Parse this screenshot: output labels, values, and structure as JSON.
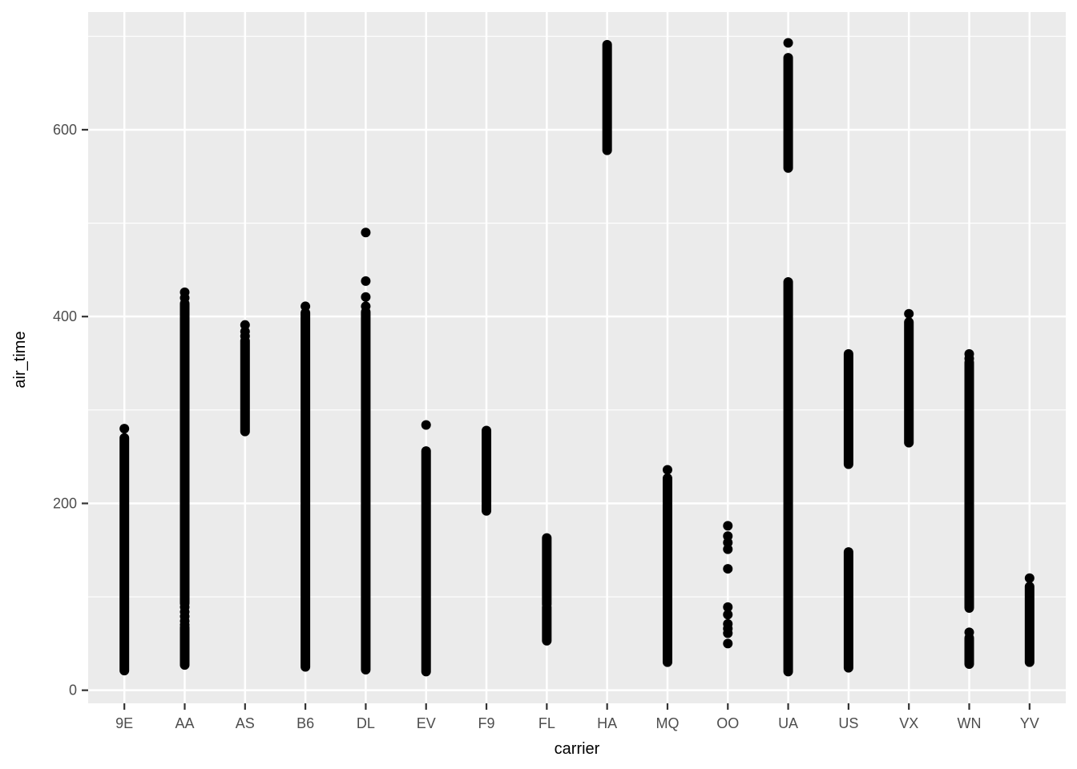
{
  "chart_data": {
    "type": "scatter",
    "title": "",
    "xlabel": "carrier",
    "ylabel": "air_time",
    "x_categories": [
      "9E",
      "AA",
      "AS",
      "B6",
      "DL",
      "EV",
      "F9",
      "FL",
      "HA",
      "MQ",
      "OO",
      "UA",
      "US",
      "VX",
      "WN",
      "YV"
    ],
    "y_axis": {
      "ticks": [
        0,
        200,
        400,
        600
      ],
      "tick_labels": [
        "0",
        "200",
        "400",
        "600"
      ],
      "minor_gridlines": [
        100,
        300,
        500,
        700
      ],
      "ylim": [
        -14,
        726
      ]
    },
    "grid": "on",
    "legend": null,
    "series": [
      {
        "carrier": "9E",
        "dense_ranges": [
          [
            21,
            270
          ]
        ],
        "isolated_points": [
          280
        ]
      },
      {
        "carrier": "AA",
        "dense_ranges": [
          [
            93,
            414
          ],
          [
            27,
            67
          ]
        ],
        "isolated_points": [
          426,
          420,
          89,
          84,
          79,
          74,
          70
        ]
      },
      {
        "carrier": "AS",
        "dense_ranges": [
          [
            277,
            374
          ]
        ],
        "isolated_points": [
          391,
          384,
          379
        ]
      },
      {
        "carrier": "B6",
        "dense_ranges": [
          [
            25,
            404
          ]
        ],
        "isolated_points": [
          411
        ]
      },
      {
        "carrier": "DL",
        "dense_ranges": [
          [
            22,
            405
          ]
        ],
        "isolated_points": [
          490,
          438,
          421,
          411
        ]
      },
      {
        "carrier": "EV",
        "dense_ranges": [
          [
            20,
            256
          ]
        ],
        "isolated_points": [
          284
        ]
      },
      {
        "carrier": "F9",
        "dense_ranges": [
          [
            192,
            278
          ]
        ],
        "isolated_points": []
      },
      {
        "carrier": "FL",
        "dense_ranges": [
          [
            92,
            163
          ],
          [
            53,
            89
          ]
        ],
        "isolated_points": []
      },
      {
        "carrier": "HA",
        "dense_ranges": [
          [
            578,
            691
          ]
        ],
        "isolated_points": []
      },
      {
        "carrier": "MQ",
        "dense_ranges": [
          [
            30,
            227
          ]
        ],
        "isolated_points": [
          236
        ]
      },
      {
        "carrier": "OO",
        "dense_ranges": [],
        "isolated_points": [
          176,
          165,
          158,
          151,
          130,
          89,
          81,
          71,
          66,
          61,
          50
        ]
      },
      {
        "carrier": "UA",
        "dense_ranges": [
          [
            559,
            677
          ],
          [
            20,
            437
          ]
        ],
        "isolated_points": [
          693
        ]
      },
      {
        "carrier": "US",
        "dense_ranges": [
          [
            242,
            360
          ],
          [
            24,
            148
          ]
        ],
        "isolated_points": []
      },
      {
        "carrier": "VX",
        "dense_ranges": [
          [
            265,
            394
          ]
        ],
        "isolated_points": [
          403
        ]
      },
      {
        "carrier": "WN",
        "dense_ranges": [
          [
            88,
            351
          ],
          [
            28,
            56
          ]
        ],
        "isolated_points": [
          360,
          355,
          62
        ]
      },
      {
        "carrier": "YV",
        "dense_ranges": [
          [
            30,
            111
          ]
        ],
        "isolated_points": [
          120
        ]
      }
    ]
  },
  "style": {
    "background": "#FFFFFF",
    "panel_bg": "#EBEBEB",
    "gridline": "#FFFFFF",
    "point": "#000000",
    "tick_mark": "#333333",
    "tick_label_color": "#4D4D4D",
    "axis_title_color": "#000000"
  }
}
